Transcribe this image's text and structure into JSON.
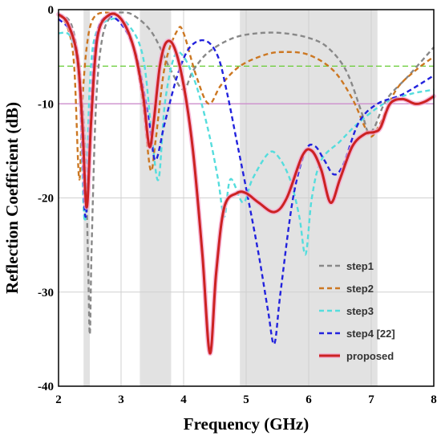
{
  "chart_data": {
    "type": "line",
    "title": "",
    "xlabel": "Frequency (GHz)",
    "ylabel": "Reflection Coefficient (dB)",
    "xlim": [
      2,
      8
    ],
    "ylim": [
      -40,
      0
    ],
    "xticks": [
      "2",
      "3",
      "4",
      "5",
      "6",
      "7",
      "8"
    ],
    "yticks": [
      "0",
      "-10",
      "-20",
      "-30",
      "-40"
    ],
    "grid": true,
    "legend_position": "bottom-right",
    "shaded_bands": [
      [
        2.4,
        2.5
      ],
      [
        3.3,
        3.8
      ],
      [
        4.9,
        7.1
      ]
    ],
    "reference_lines": [
      {
        "y": -6,
        "color": "#66cc33",
        "style": "dashed"
      },
      {
        "y": -10,
        "color": "#cc88cc",
        "style": "solid"
      }
    ],
    "series": [
      {
        "name": "step1",
        "color": "#888888",
        "style": "dashed",
        "points": [
          [
            2.0,
            -0.5
          ],
          [
            2.2,
            -1.5
          ],
          [
            2.33,
            -6
          ],
          [
            2.42,
            -14
          ],
          [
            2.47,
            -26
          ],
          [
            2.5,
            -34.5
          ],
          [
            2.53,
            -25
          ],
          [
            2.6,
            -10
          ],
          [
            2.7,
            -3
          ],
          [
            2.85,
            -0.6
          ],
          [
            3.0,
            -0.3
          ],
          [
            3.2,
            -0.6
          ],
          [
            3.5,
            -2.5
          ],
          [
            3.8,
            -6.5
          ],
          [
            4.0,
            -8.5
          ],
          [
            4.15,
            -6.5
          ],
          [
            4.4,
            -4.5
          ],
          [
            4.8,
            -3
          ],
          [
            5.2,
            -2.5
          ],
          [
            5.6,
            -2.5
          ],
          [
            6.0,
            -3
          ],
          [
            6.3,
            -4
          ],
          [
            6.6,
            -6.5
          ],
          [
            6.85,
            -11
          ],
          [
            6.95,
            -13
          ],
          [
            7.05,
            -12.5
          ],
          [
            7.25,
            -9.5
          ],
          [
            7.6,
            -7
          ],
          [
            8.0,
            -4
          ]
        ]
      },
      {
        "name": "step2",
        "color": "#cc7722",
        "style": "dashed",
        "points": [
          [
            2.0,
            -0.5
          ],
          [
            2.15,
            -2
          ],
          [
            2.25,
            -6
          ],
          [
            2.33,
            -18
          ],
          [
            2.38,
            -10
          ],
          [
            2.45,
            -4
          ],
          [
            2.55,
            -1
          ],
          [
            2.75,
            -0.3
          ],
          [
            3.0,
            -1
          ],
          [
            3.2,
            -4
          ],
          [
            3.35,
            -10
          ],
          [
            3.47,
            -17
          ],
          [
            3.55,
            -14
          ],
          [
            3.7,
            -6
          ],
          [
            3.9,
            -2.2
          ],
          [
            4.0,
            -2.5
          ],
          [
            4.2,
            -7
          ],
          [
            4.4,
            -10
          ],
          [
            4.6,
            -8
          ],
          [
            4.9,
            -6
          ],
          [
            5.3,
            -4.8
          ],
          [
            5.6,
            -4.5
          ],
          [
            6.0,
            -4.8
          ],
          [
            6.4,
            -6.5
          ],
          [
            6.7,
            -9.5
          ],
          [
            6.9,
            -12.5
          ],
          [
            7.0,
            -13.5
          ],
          [
            7.15,
            -12
          ],
          [
            7.4,
            -8.5
          ],
          [
            7.7,
            -6.5
          ],
          [
            8.0,
            -5
          ]
        ]
      },
      {
        "name": "step3",
        "color": "#55dddd",
        "style": "dashed",
        "points": [
          [
            2.0,
            -2.5
          ],
          [
            2.2,
            -3
          ],
          [
            2.33,
            -8
          ],
          [
            2.42,
            -22.5
          ],
          [
            2.5,
            -8
          ],
          [
            2.6,
            -2.5
          ],
          [
            2.85,
            -1
          ],
          [
            3.1,
            -1.5
          ],
          [
            3.35,
            -5
          ],
          [
            3.5,
            -14
          ],
          [
            3.6,
            -18
          ],
          [
            3.7,
            -10
          ],
          [
            3.85,
            -5
          ],
          [
            4.0,
            -5
          ],
          [
            4.2,
            -8
          ],
          [
            4.4,
            -13
          ],
          [
            4.55,
            -18
          ],
          [
            4.65,
            -22
          ],
          [
            4.75,
            -18
          ],
          [
            4.95,
            -20.5
          ],
          [
            5.1,
            -18
          ],
          [
            5.35,
            -15.3
          ],
          [
            5.5,
            -15.5
          ],
          [
            5.7,
            -18
          ],
          [
            5.85,
            -22
          ],
          [
            5.95,
            -26
          ],
          [
            6.05,
            -20
          ],
          [
            6.2,
            -16
          ],
          [
            6.5,
            -14
          ],
          [
            6.8,
            -12
          ],
          [
            7.2,
            -10
          ],
          [
            7.6,
            -9
          ],
          [
            8.0,
            -8.5
          ]
        ]
      },
      {
        "name": "step4 [22]",
        "color": "#2222dd",
        "style": "dashed",
        "points": [
          [
            2.0,
            -1
          ],
          [
            2.2,
            -2.5
          ],
          [
            2.33,
            -7
          ],
          [
            2.43,
            -22
          ],
          [
            2.52,
            -10
          ],
          [
            2.6,
            -3
          ],
          [
            2.75,
            -0.8
          ],
          [
            3.0,
            -1.5
          ],
          [
            3.25,
            -5
          ],
          [
            3.45,
            -12
          ],
          [
            3.55,
            -16
          ],
          [
            3.7,
            -12
          ],
          [
            3.9,
            -7
          ],
          [
            4.1,
            -4
          ],
          [
            4.35,
            -3.3
          ],
          [
            4.55,
            -5
          ],
          [
            4.7,
            -9
          ],
          [
            4.85,
            -14
          ],
          [
            5.0,
            -19
          ],
          [
            5.2,
            -26
          ],
          [
            5.35,
            -32
          ],
          [
            5.45,
            -35.5
          ],
          [
            5.55,
            -30
          ],
          [
            5.75,
            -20
          ],
          [
            5.95,
            -15
          ],
          [
            6.1,
            -14.5
          ],
          [
            6.25,
            -16
          ],
          [
            6.4,
            -17.5
          ],
          [
            6.55,
            -16.5
          ],
          [
            6.8,
            -12
          ],
          [
            7.1,
            -10
          ],
          [
            7.5,
            -9
          ],
          [
            8.0,
            -7
          ]
        ]
      },
      {
        "name": "proposed",
        "color": "#cc2222",
        "style": "solid",
        "points": [
          [
            2.0,
            -0.5
          ],
          [
            2.15,
            -1.5
          ],
          [
            2.3,
            -5
          ],
          [
            2.38,
            -12
          ],
          [
            2.45,
            -21
          ],
          [
            2.52,
            -12
          ],
          [
            2.62,
            -3
          ],
          [
            2.8,
            -0.6
          ],
          [
            3.0,
            -1
          ],
          [
            3.2,
            -4
          ],
          [
            3.35,
            -9
          ],
          [
            3.45,
            -14.5
          ],
          [
            3.52,
            -12
          ],
          [
            3.62,
            -6
          ],
          [
            3.72,
            -3.5
          ],
          [
            3.85,
            -4
          ],
          [
            4.0,
            -8
          ],
          [
            4.15,
            -15
          ],
          [
            4.3,
            -26
          ],
          [
            4.42,
            -36.5
          ],
          [
            4.52,
            -28
          ],
          [
            4.65,
            -21
          ],
          [
            4.85,
            -19.5
          ],
          [
            5.0,
            -19.5
          ],
          [
            5.2,
            -20.5
          ],
          [
            5.45,
            -21.5
          ],
          [
            5.65,
            -20
          ],
          [
            5.9,
            -15.5
          ],
          [
            6.05,
            -15
          ],
          [
            6.2,
            -17
          ],
          [
            6.35,
            -20.5
          ],
          [
            6.5,
            -18
          ],
          [
            6.7,
            -14.5
          ],
          [
            6.9,
            -13.2
          ],
          [
            7.05,
            -13
          ],
          [
            7.15,
            -12.5
          ],
          [
            7.3,
            -10
          ],
          [
            7.5,
            -9.5
          ],
          [
            7.7,
            -10
          ],
          [
            7.85,
            -9.8
          ],
          [
            8.0,
            -9.2
          ]
        ]
      }
    ]
  }
}
